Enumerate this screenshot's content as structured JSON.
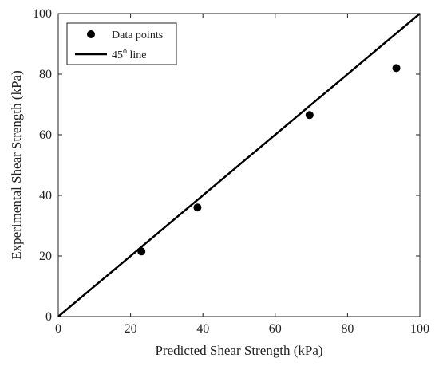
{
  "chart_data": {
    "type": "scatter",
    "xlabel": "Predicted Shear Strength (kPa)",
    "ylabel": "Experimental Shear Strength (kPa)",
    "xlim": [
      0,
      100
    ],
    "ylim": [
      0,
      100
    ],
    "xticks": [
      "0",
      "20",
      "40",
      "60",
      "80",
      "100"
    ],
    "yticks": [
      "0",
      "20",
      "40",
      "60",
      "80",
      "100"
    ],
    "grid": false,
    "legend_position": "top-left",
    "series": [
      {
        "name": "Data points",
        "marker": "circle",
        "color": "#000000",
        "points": [
          {
            "x": 23,
            "y": 21.5
          },
          {
            "x": 38.5,
            "y": 36
          },
          {
            "x": 69.5,
            "y": 66.5
          },
          {
            "x": 93.5,
            "y": 82
          }
        ]
      },
      {
        "name_base": "45",
        "name_sup": "o",
        "name_rest": " line",
        "type": "line",
        "color": "#000000",
        "points": [
          {
            "x": 0,
            "y": 0
          },
          {
            "x": 100,
            "y": 100
          }
        ]
      }
    ]
  }
}
